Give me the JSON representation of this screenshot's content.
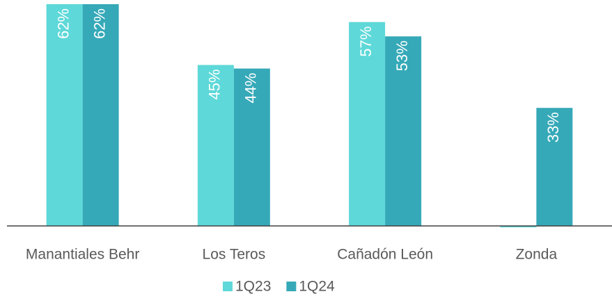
{
  "chart_data": {
    "type": "bar",
    "categories": [
      "Manantiales Behr",
      "Los Teros",
      "Cañadón León",
      "Zonda"
    ],
    "series": [
      {
        "name": "1Q23",
        "color": "#5ed8d8",
        "values": [
          62,
          45,
          57,
          -0.4
        ],
        "value_labels": [
          "62%",
          "45%",
          "57%",
          null
        ]
      },
      {
        "name": "1Q24",
        "color": "#36a9b8",
        "values": [
          62,
          44,
          53,
          33
        ],
        "value_labels": [
          "62%",
          "44%",
          "53%",
          "33%"
        ]
      }
    ],
    "ylim": [
      0,
      62
    ],
    "legend": "bottom"
  }
}
